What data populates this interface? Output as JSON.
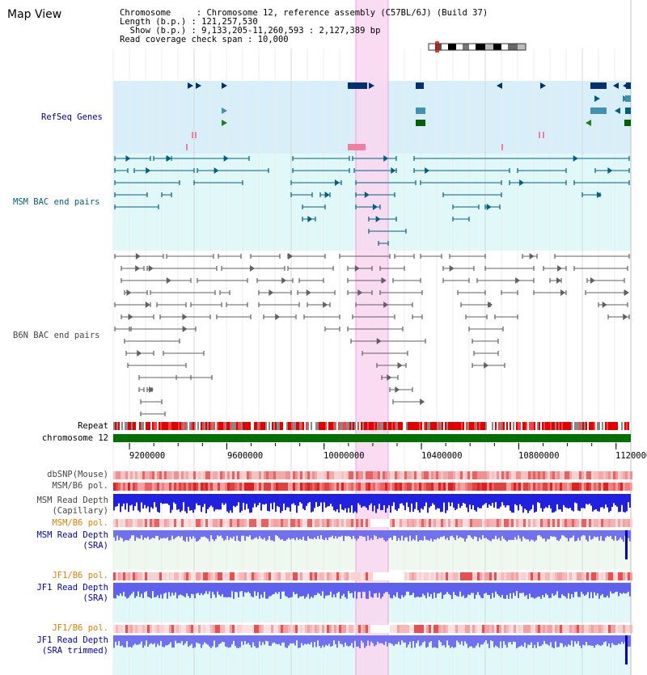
{
  "app_title": "Map View",
  "header": {
    "chromosome": "Chromosome     : Chromosome 12, reference assembly (C57BL/6J) (Build 37)",
    "length": "Length (b.p.) : 121,257,530",
    "show": "  Show (b.p.) : 9,133,205-11,260,593 : 2,127,389 bp",
    "span": "Read coverage check span : 10,000"
  },
  "tracks": {
    "refseq": "RefSeq Genes",
    "msm_bac": "MSM BAC end pairs",
    "b6n_bac": "B6N BAC end pairs",
    "repeat": "Repeat",
    "chrom": "chromosome 12",
    "dbsnp": "dbSNP(Mouse)",
    "msm_b6_pol": "MSM/B6 pol.",
    "msm_depth_cap_1": "MSM Read Depth",
    "msm_depth_cap_2": "(Capillary)",
    "msm_b6_pol_2": "MSM/B6 pol.",
    "msm_depth_sra_1": "MSM Read Depth",
    "msm_depth_sra_2": "(SRA)",
    "jf1_pol_1": "JF1/B6 pol.",
    "jf1_depth_sra_1": "JF1 Read Depth",
    "jf1_depth_sra_2": "(SRA)",
    "jf1_pol_2": "JF1/B6 pol.",
    "jf1_depth_trim_1": "JF1 Read Depth",
    "jf1_depth_trim_2": "(SRA trimmed)"
  },
  "axis": {
    "ticks": [
      "9200000",
      "9600000",
      "10000000",
      "10400000",
      "10800000",
      "11200000"
    ],
    "tick_values": [
      9200000,
      9600000,
      10000000,
      10400000,
      10800000,
      11200000
    ],
    "range": [
      9133205,
      11260593
    ]
  },
  "colors": {
    "refseq_label": "#00008b",
    "msm_label": "#006080",
    "b6n_label": "#444444",
    "pol_orange": "#e08000",
    "depth_blue": "#0000c0",
    "highlight": "#f8d8f0",
    "chrom_green": "#007000",
    "refseq_bg": "#d8eef8",
    "msm_bg": "#e0f8f8"
  },
  "icons": [
    "chromosome-ideogram-icon"
  ]
}
